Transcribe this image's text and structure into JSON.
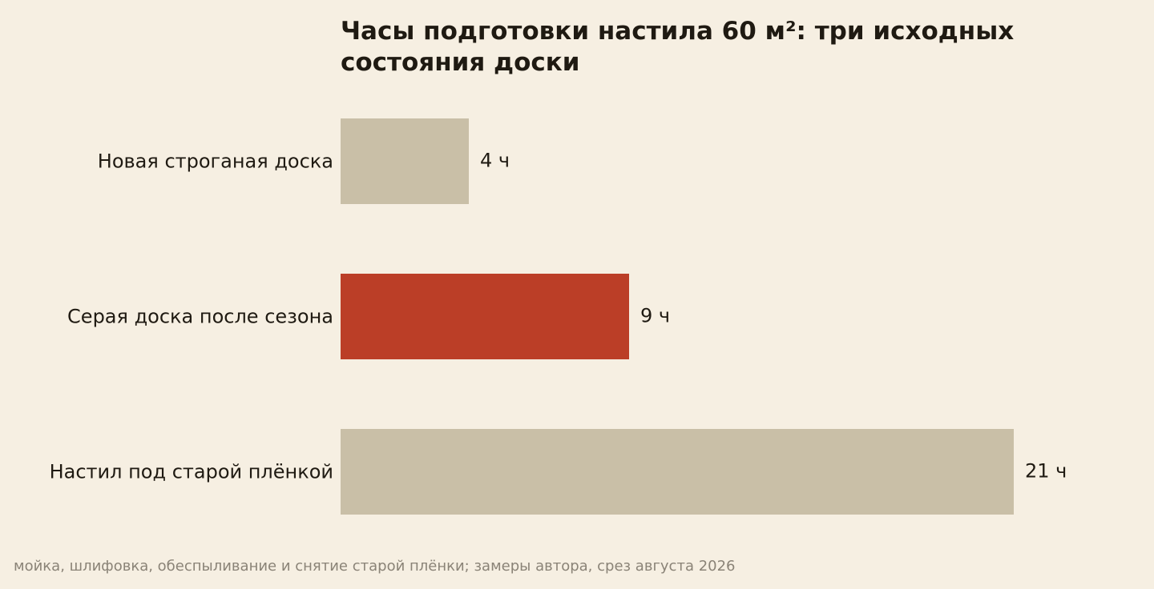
{
  "chart_data": {
    "type": "bar",
    "orientation": "horizontal",
    "title": "Часы подготовки настила 60 м²: три исходных состояния доски",
    "categories": [
      "Новая строганая доска",
      "Серая доска после сезона",
      "Настил под старой плёнкой"
    ],
    "values": [
      4,
      9,
      21
    ],
    "value_labels": [
      "4 ч",
      "9 ч",
      "21 ч"
    ],
    "xlim": [
      0,
      21
    ],
    "highlight_index": 1,
    "colors": {
      "bar": "#c9bfa7",
      "highlight": "#bb3e27",
      "background": "#f6efe2",
      "text": "#1f1a12",
      "note": "#8a8377"
    },
    "grid": false,
    "note": "мойка, шлифовка, обеспыливание и снятие старой плёнки; замеры автора, срез августа 2026"
  }
}
